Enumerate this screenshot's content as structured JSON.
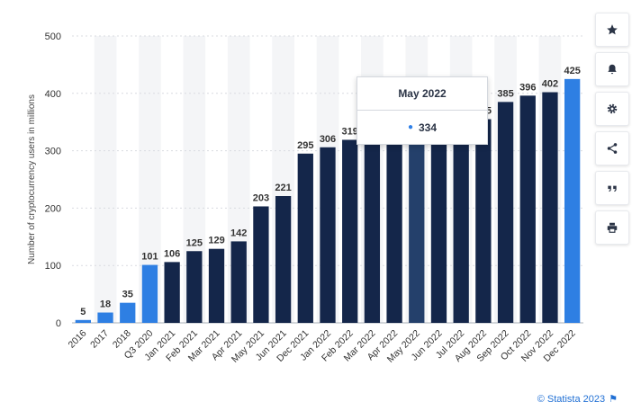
{
  "chart_data": {
    "type": "bar",
    "ylabel": "Number of cryptocurrency users in millions",
    "ylim": [
      0,
      500
    ],
    "yticks": [
      0,
      100,
      200,
      300,
      400,
      500
    ],
    "grid": true,
    "categories": [
      "2016",
      "2017",
      "2018",
      "Q3 2020",
      "Jan 2021",
      "Feb 2021",
      "Mar 2021",
      "Apr 2021",
      "May 2021",
      "Jun 2021",
      "Dec 2021",
      "Jan 2022",
      "Feb 2022",
      "Mar 2022",
      "Apr 2022",
      "May 2022",
      "Jun 2022",
      "Jul 2022",
      "Aug 2022",
      "Sep 2022",
      "Oct 2022",
      "Nov 2022",
      "Dec 2022"
    ],
    "values": [
      5,
      18,
      35,
      101,
      106,
      125,
      129,
      142,
      203,
      221,
      295,
      306,
      319,
      324,
      330,
      334,
      340,
      345,
      355,
      385,
      396,
      402,
      425
    ],
    "highlighted": [
      "2016",
      "2017",
      "2018",
      "Q3 2020",
      "Dec 2022"
    ],
    "hovered": "May 2022",
    "colors": {
      "dark": "#14264a",
      "highlight": "#2e7fe3",
      "hover": "#24406b",
      "stripe": "#f4f5f7",
      "grid": "#d9dce1",
      "text": "#333333"
    }
  },
  "tooltip": {
    "title": "May 2022",
    "value": "334"
  },
  "toolbar": [
    "star-icon",
    "bell-icon",
    "gear-icon",
    "share-icon",
    "quote-icon",
    "print-icon"
  ],
  "credit": "© Statista 2023"
}
